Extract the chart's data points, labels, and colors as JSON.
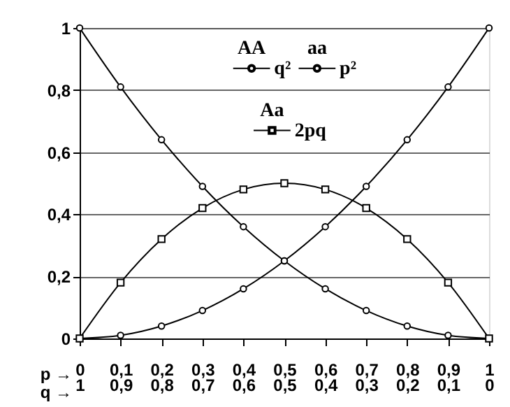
{
  "chart_data": {
    "type": "line",
    "x": [
      0,
      0.1,
      0.2,
      0.3,
      0.4,
      0.5,
      0.6,
      0.7,
      0.8,
      0.9,
      1
    ],
    "series": [
      {
        "name": "q²",
        "color": "#000000",
        "marker": "circle",
        "values": [
          1,
          0.81,
          0.64,
          0.49,
          0.36,
          0.25,
          0.16,
          0.09,
          0.04,
          0.01,
          0
        ]
      },
      {
        "name": "p²",
        "color": "#000000",
        "marker": "circle",
        "values": [
          0,
          0.01,
          0.04,
          0.09,
          0.16,
          0.25,
          0.36,
          0.49,
          0.64,
          0.81,
          1
        ]
      },
      {
        "name": "2pq",
        "color": "#000000",
        "marker": "square",
        "values": [
          0,
          0.18,
          0.32,
          0.42,
          0.48,
          0.5,
          0.48,
          0.42,
          0.32,
          0.18,
          0
        ]
      }
    ],
    "annotations": [
      "AA",
      "aa",
      "Aa"
    ],
    "xlabel": "p →",
    "x2label": "q →",
    "xlim": [
      0,
      1
    ],
    "xticks": [
      0,
      {
        "value": 0.1,
        "label": "0,1"
      },
      {
        "value": 0.2,
        "label": "0,2"
      },
      {
        "value": 0.3,
        "label": "0,3"
      },
      {
        "value": 0.4,
        "label": "0,4"
      },
      {
        "value": 0.5,
        "label": "0,5"
      },
      {
        "value": 0.6,
        "label": "0,6"
      },
      {
        "value": 0.7,
        "label": "0,7"
      },
      {
        "value": 0.8,
        "label": "0,8"
      },
      {
        "value": 0.9,
        "label": "0,9"
      },
      1
    ],
    "x2lim": [
      1,
      0
    ],
    "x2ticks": [
      1,
      {
        "value": 0.9,
        "label": "0,9"
      },
      {
        "value": 0.8,
        "label": "0,8"
      },
      {
        "value": 0.7,
        "label": "0,7"
      },
      {
        "value": 0.6,
        "label": "0,6"
      },
      {
        "value": 0.5,
        "label": "0,5"
      },
      {
        "value": 0.4,
        "label": "0,4"
      },
      {
        "value": 0.3,
        "label": "0,3"
      },
      {
        "value": 0.2,
        "label": "0,2"
      },
      {
        "value": 0.1,
        "label": "0,1"
      },
      0
    ],
    "ylim": [
      0,
      1
    ],
    "yticks": [
      0,
      {
        "value": 0.2,
        "label": "0,2"
      },
      {
        "value": 0.4,
        "label": "0,4"
      },
      {
        "value": 0.6,
        "label": "0,6"
      },
      {
        "value": 0.8,
        "label": "0,8"
      },
      1
    ],
    "grid": "y",
    "legend": "top",
    "line_style": "solid"
  }
}
